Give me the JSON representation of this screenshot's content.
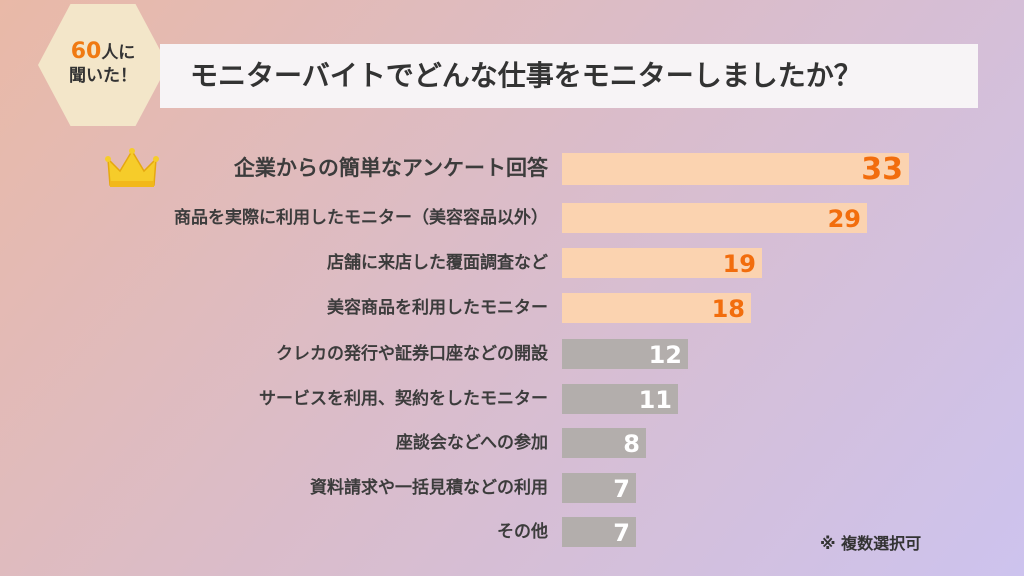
{
  "badge": {
    "line1_prefix": "60",
    "line1_suffix": "人に",
    "line2": "聞いた！"
  },
  "title": "モニターバイトでどんな仕事をモニターしましたか？",
  "footnote": "※ 複数選択可",
  "colors": {
    "highlight_bar": "#fbd3b0",
    "highlight_value": "#f26d0d",
    "other_bar": "#b3aeac",
    "other_value": "#ffffff",
    "crown": "#f6cc2a"
  },
  "icons": {
    "top_item": "crown-icon"
  },
  "chart_data": {
    "type": "bar",
    "orientation": "horizontal",
    "title": "モニターバイトでどんな仕事をモニターしましたか？",
    "xlabel": "",
    "ylabel": "",
    "xlim": [
      0,
      33
    ],
    "grid": false,
    "categories": [
      "企業からの簡単なアンケート回答",
      "商品を実際に利用したモニター（美容容品以外）",
      "店舗に来店した覆面調査など",
      "美容商品を利用したモニター",
      "クレカの発行や証券口座などの開設",
      "サービスを利用、契約をしたモニター",
      "座談会などへの参加",
      "資料請求や一括見積などの利用",
      "その他"
    ],
    "values": [
      33,
      29,
      19,
      18,
      12,
      11,
      8,
      7,
      7
    ],
    "highlight_count": 4
  }
}
